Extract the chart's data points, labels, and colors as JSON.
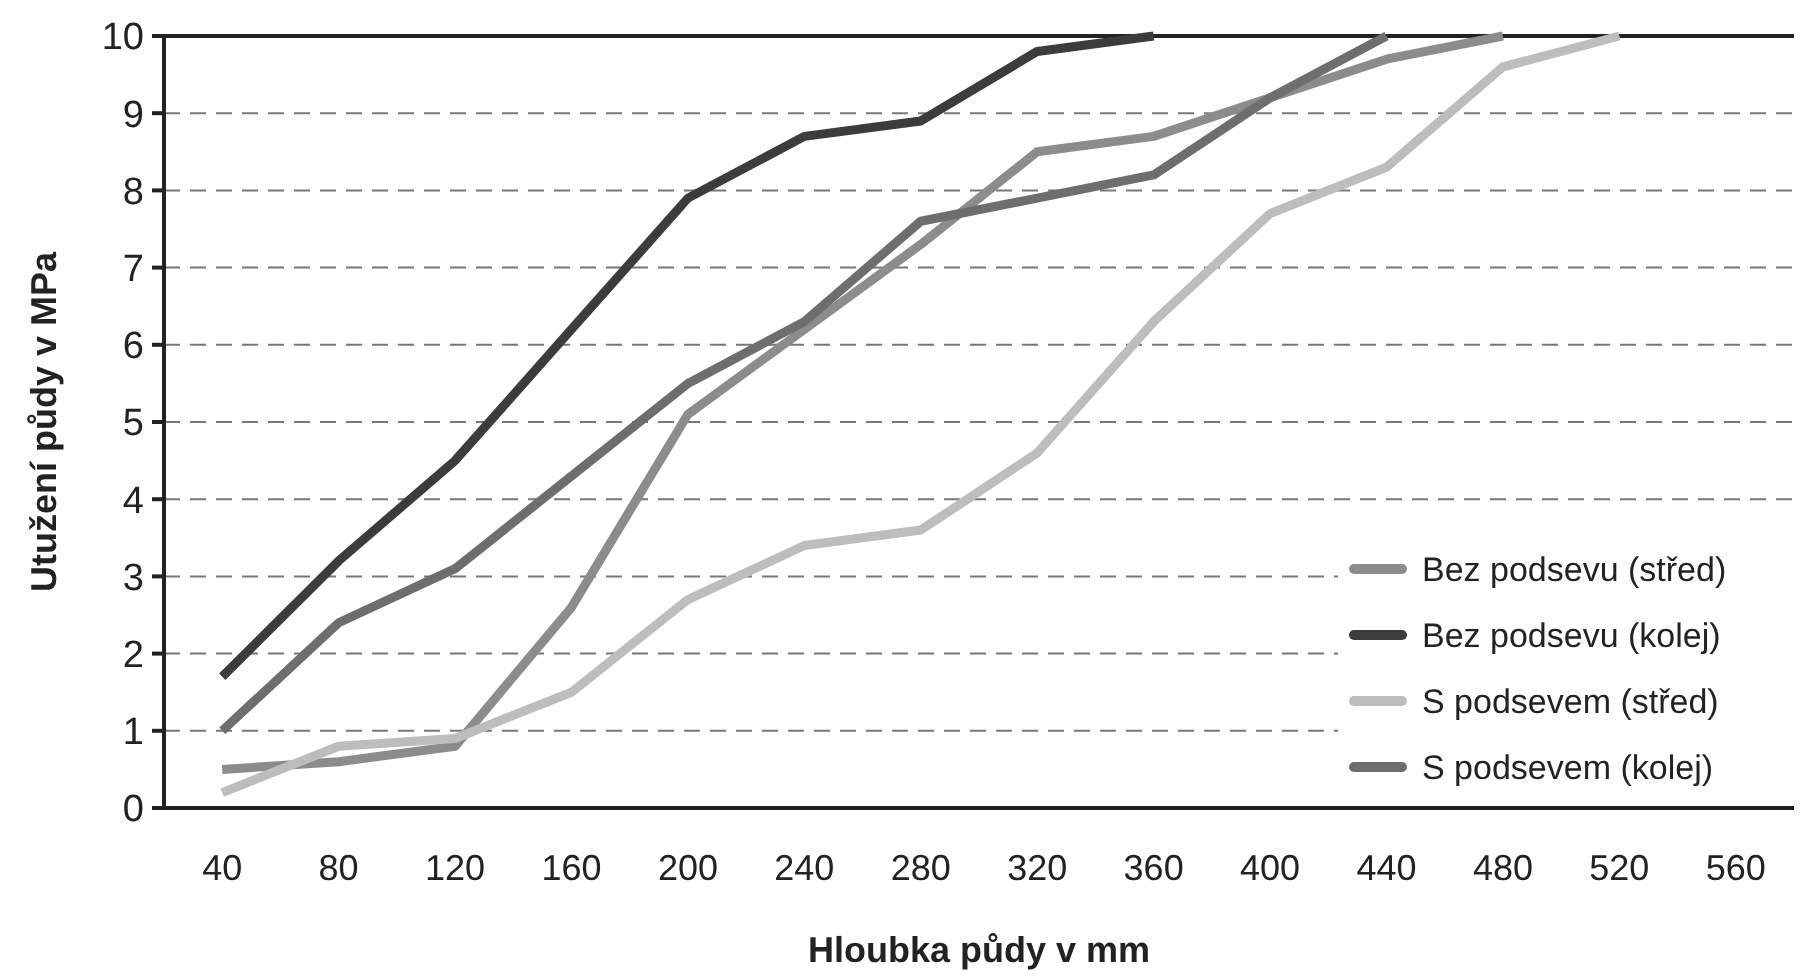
{
  "chart_data": {
    "type": "line",
    "xlabel": "Hloubka půdy v mm",
    "ylabel": "Utužení půdy v MPa",
    "categories": [
      "40",
      "80",
      "120",
      "160",
      "200",
      "240",
      "280",
      "320",
      "360",
      "400",
      "440",
      "480",
      "520",
      "560"
    ],
    "ylim": [
      0,
      10
    ],
    "yticks": [
      0,
      1,
      2,
      3,
      4,
      5,
      6,
      7,
      8,
      9,
      10
    ],
    "grid": "y",
    "legend": "bottom right",
    "marker": "none",
    "line_style": "solid",
    "series": [
      {
        "name": "Bez podsevu (střed)",
        "color": "#8c8c8c",
        "values": [
          0.5,
          0.6,
          0.8,
          2.6,
          5.1,
          6.2,
          7.3,
          8.5,
          8.7,
          9.2,
          9.7,
          10,
          null,
          null
        ]
      },
      {
        "name": "Bez podsevu (kolej)",
        "color": "#3c3c3c",
        "values": [
          1.7,
          3.2,
          4.5,
          6.2,
          7.9,
          8.7,
          8.9,
          9.8,
          10,
          null,
          null,
          null,
          null,
          null
        ]
      },
      {
        "name": "S podsevem (střed)",
        "color": "#bdbdbd",
        "values": [
          0.2,
          0.8,
          0.9,
          1.5,
          2.7,
          3.4,
          3.6,
          4.6,
          6.3,
          7.7,
          8.3,
          9.6,
          10,
          null
        ]
      },
      {
        "name": "S podsevem (kolej)",
        "color": "#6e6e6e",
        "values": [
          1.0,
          2.4,
          3.1,
          4.3,
          5.5,
          6.3,
          7.6,
          7.9,
          8.2,
          9.2,
          10,
          null,
          null,
          null
        ]
      }
    ]
  }
}
